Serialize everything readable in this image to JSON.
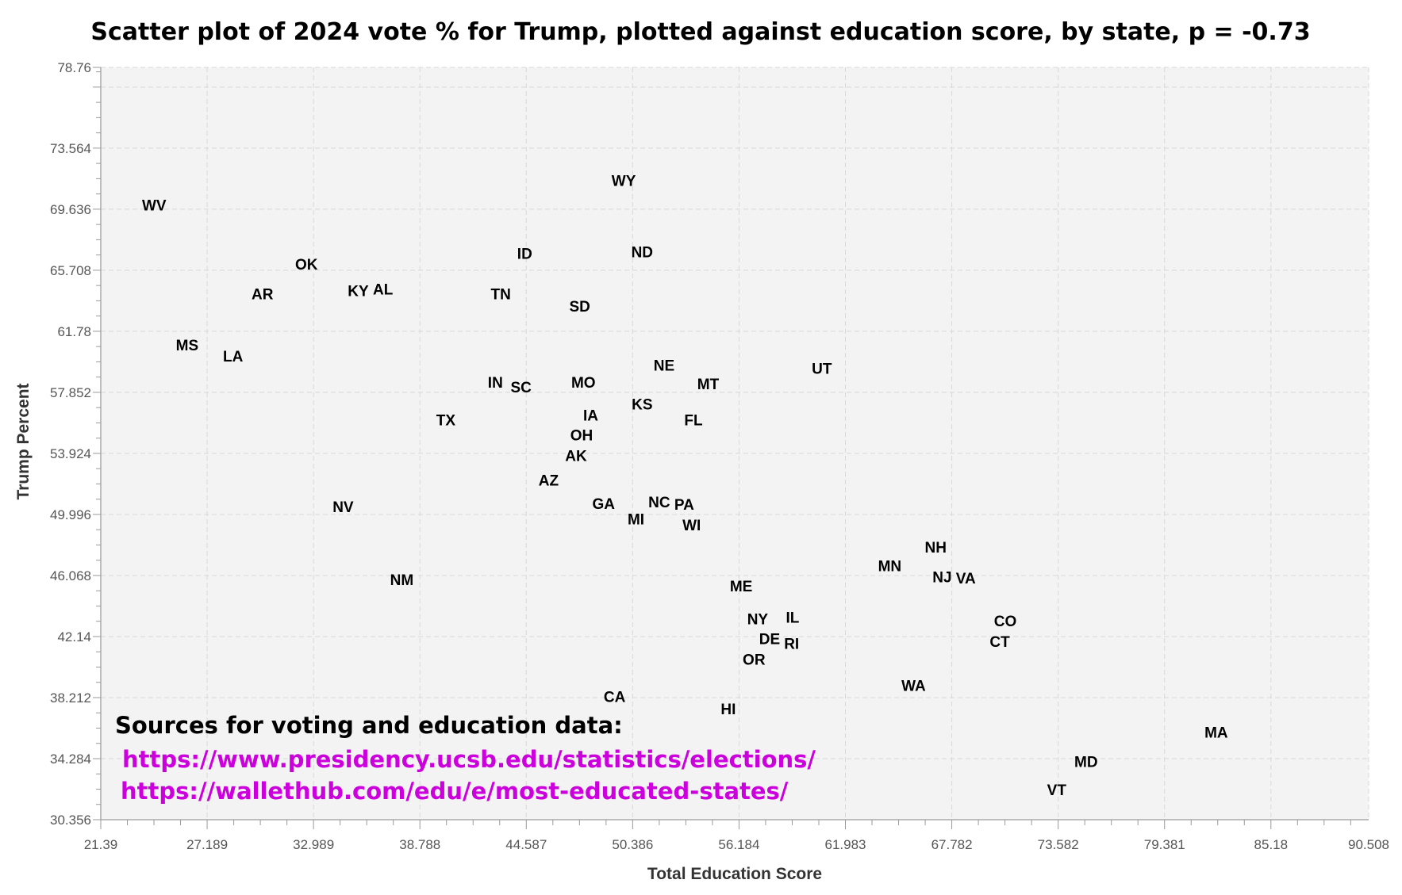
{
  "chart_data": {
    "type": "scatter",
    "title": "Scatter plot of 2024 vote % for Trump, plotted against education score, by state, p = -0.73",
    "xlabel": "Total Education Score",
    "ylabel": "Trump Percent",
    "xlim": [
      21.39,
      90.508
    ],
    "ylim": [
      30.356,
      78.76
    ],
    "x_ticks": [
      "21.39",
      "27.189",
      "32.989",
      "38.788",
      "44.587",
      "50.386",
      "56.184",
      "61.983",
      "67.782",
      "73.582",
      "79.381",
      "85.18",
      "90.508"
    ],
    "y_ticks": [
      "30.356",
      "34.284",
      "38.212",
      "42.14",
      "46.068",
      "49.996",
      "53.924",
      "57.852",
      "61.78",
      "65.708",
      "69.636",
      "73.564",
      "78.76"
    ],
    "grid": true,
    "marker": "state-abbreviation text",
    "points": [
      {
        "label": "WV",
        "x": 24.3,
        "y": 69.9
      },
      {
        "label": "WY",
        "x": 49.9,
        "y": 71.5
      },
      {
        "label": "ID",
        "x": 44.5,
        "y": 66.8
      },
      {
        "label": "ND",
        "x": 50.9,
        "y": 66.9
      },
      {
        "label": "OK",
        "x": 32.6,
        "y": 66.1
      },
      {
        "label": "AR",
        "x": 30.2,
        "y": 64.2
      },
      {
        "label": "KY",
        "x": 35.7,
        "y": 64.4
      },
      {
        "label": "AL",
        "x": 36.5,
        "y": 64.5
      },
      {
        "label": "TN",
        "x": 43.2,
        "y": 64.2
      },
      {
        "label": "SD",
        "x": 47.5,
        "y": 63.4
      },
      {
        "label": "MS",
        "x": 26.1,
        "y": 60.9
      },
      {
        "label": "LA",
        "x": 28.6,
        "y": 60.2
      },
      {
        "label": "NE",
        "x": 52.1,
        "y": 59.6
      },
      {
        "label": "UT",
        "x": 60.7,
        "y": 59.4
      },
      {
        "label": "IN",
        "x": 42.9,
        "y": 58.5
      },
      {
        "label": "SC",
        "x": 44.3,
        "y": 58.2
      },
      {
        "label": "MO",
        "x": 47.7,
        "y": 58.5
      },
      {
        "label": "MT",
        "x": 54.5,
        "y": 58.4
      },
      {
        "label": "KS",
        "x": 50.9,
        "y": 57.1
      },
      {
        "label": "TX",
        "x": 40.2,
        "y": 56.1
      },
      {
        "label": "FL",
        "x": 53.7,
        "y": 56.1
      },
      {
        "label": "IA",
        "x": 48.1,
        "y": 55.7
      },
      {
        "label": "OH",
        "x": 47.6,
        "y": 55.1
      },
      {
        "label": "AK",
        "x": 47.3,
        "y": 54.5
      },
      {
        "label": "AZ",
        "x": 45.8,
        "y": 52.2
      },
      {
        "label": "GA",
        "x": 48.8,
        "y": 50.7
      },
      {
        "label": "NC",
        "x": 51.8,
        "y": 50.8
      },
      {
        "label": "PA",
        "x": 53.2,
        "y": 50.3
      },
      {
        "label": "MI",
        "x": 50.6,
        "y": 49.7
      },
      {
        "label": "WI",
        "x": 53.6,
        "y": 49.7
      },
      {
        "label": "NV",
        "x": 34.6,
        "y": 50.5
      },
      {
        "label": "NM",
        "x": 37.8,
        "y": 45.8
      },
      {
        "label": "NH",
        "x": 66.9,
        "y": 47.9
      },
      {
        "label": "MN",
        "x": 64.4,
        "y": 46.7
      },
      {
        "label": "NJ",
        "x": 67.7,
        "y": 46.0
      },
      {
        "label": "VA",
        "x": 68.1,
        "y": 45.9
      },
      {
        "label": "ME",
        "x": 56.3,
        "y": 45.4
      },
      {
        "label": "NY",
        "x": 57.2,
        "y": 43.2
      },
      {
        "label": "IL",
        "x": 59.1,
        "y": 43.4
      },
      {
        "label": "DE",
        "x": 58.2,
        "y": 41.9
      },
      {
        "label": "RI",
        "x": 58.7,
        "y": 41.7
      },
      {
        "label": "OR",
        "x": 57.0,
        "y": 40.9
      },
      {
        "label": "CO",
        "x": 70.7,
        "y": 43.1
      },
      {
        "label": "CT",
        "x": 70.4,
        "y": 41.9
      },
      {
        "label": "WA",
        "x": 65.7,
        "y": 39.0
      },
      {
        "label": "CA",
        "x": 49.4,
        "y": 38.3
      },
      {
        "label": "HI",
        "x": 55.6,
        "y": 37.5
      },
      {
        "label": "MA",
        "x": 82.2,
        "y": 36.0
      },
      {
        "label": "MD",
        "x": 75.1,
        "y": 34.1
      },
      {
        "label": "VT",
        "x": 73.5,
        "y": 32.3
      }
    ]
  },
  "annotation": {
    "heading": "Sources for voting and education data:",
    "links": [
      "https://www.presidency.ucsb.edu/statistics/elections/",
      "https://wallethub.com/edu/e/most-educated-states/"
    ],
    "link_color": "#cc00dd"
  },
  "colors": {
    "plot_background": "#f3f3f3",
    "grid": "#d8d8d8",
    "text": "#000000"
  }
}
